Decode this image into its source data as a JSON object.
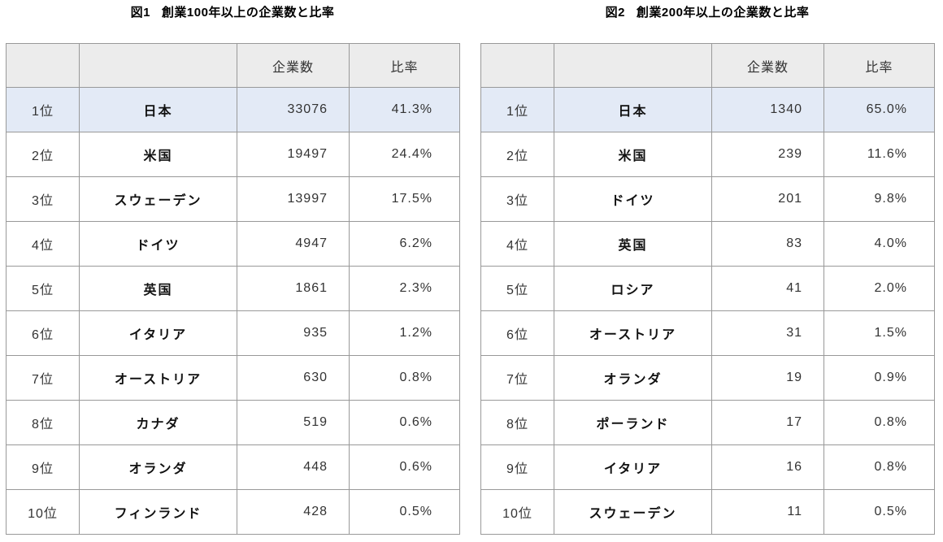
{
  "colors": {
    "header_bg": "#ececec",
    "highlight_bg": "#e3eaf6",
    "border_inner": "#999999",
    "border_outer": "#8c8c8c",
    "text": "#333333"
  },
  "chart_data": [
    {
      "type": "table",
      "figure_label": "図1",
      "title": "創業100年以上の企業数と比率",
      "column_headers": [
        "",
        "",
        "企業数",
        "比率"
      ],
      "legend_position": "none",
      "highlighted_rank": "1位",
      "rows": [
        {
          "rank": "1位",
          "country": "日本",
          "count": 33076,
          "ratio": "41.3%",
          "highlight": true
        },
        {
          "rank": "2位",
          "country": "米国",
          "count": 19497,
          "ratio": "24.4%",
          "highlight": false
        },
        {
          "rank": "3位",
          "country": "スウェーデン",
          "count": 13997,
          "ratio": "17.5%",
          "highlight": false
        },
        {
          "rank": "4位",
          "country": "ドイツ",
          "count": 4947,
          "ratio": "6.2%",
          "highlight": false
        },
        {
          "rank": "5位",
          "country": "英国",
          "count": 1861,
          "ratio": "2.3%",
          "highlight": false
        },
        {
          "rank": "6位",
          "country": "イタリア",
          "count": 935,
          "ratio": "1.2%",
          "highlight": false
        },
        {
          "rank": "7位",
          "country": "オーストリア",
          "count": 630,
          "ratio": "0.8%",
          "highlight": false
        },
        {
          "rank": "8位",
          "country": "カナダ",
          "count": 519,
          "ratio": "0.6%",
          "highlight": false
        },
        {
          "rank": "9位",
          "country": "オランダ",
          "count": 448,
          "ratio": "0.6%",
          "highlight": false
        },
        {
          "rank": "10位",
          "country": "フィンランド",
          "count": 428,
          "ratio": "0.5%",
          "highlight": false
        }
      ]
    },
    {
      "type": "table",
      "figure_label": "図2",
      "title": "創業200年以上の企業数と比率",
      "column_headers": [
        "",
        "",
        "企業数",
        "比率"
      ],
      "legend_position": "none",
      "highlighted_rank": "1位",
      "rows": [
        {
          "rank": "1位",
          "country": "日本",
          "count": 1340,
          "ratio": "65.0%",
          "highlight": true
        },
        {
          "rank": "2位",
          "country": "米国",
          "count": 239,
          "ratio": "11.6%",
          "highlight": false
        },
        {
          "rank": "3位",
          "country": "ドイツ",
          "count": 201,
          "ratio": "9.8%",
          "highlight": false
        },
        {
          "rank": "4位",
          "country": "英国",
          "count": 83,
          "ratio": "4.0%",
          "highlight": false
        },
        {
          "rank": "5位",
          "country": "ロシア",
          "count": 41,
          "ratio": "2.0%",
          "highlight": false
        },
        {
          "rank": "6位",
          "country": "オーストリア",
          "count": 31,
          "ratio": "1.5%",
          "highlight": false
        },
        {
          "rank": "7位",
          "country": "オランダ",
          "count": 19,
          "ratio": "0.9%",
          "highlight": false
        },
        {
          "rank": "8位",
          "country": "ポーランド",
          "count": 17,
          "ratio": "0.8%",
          "highlight": false
        },
        {
          "rank": "9位",
          "country": "イタリア",
          "count": 16,
          "ratio": "0.8%",
          "highlight": false
        },
        {
          "rank": "10位",
          "country": "スウェーデン",
          "count": 11,
          "ratio": "0.5%",
          "highlight": false
        }
      ]
    }
  ]
}
